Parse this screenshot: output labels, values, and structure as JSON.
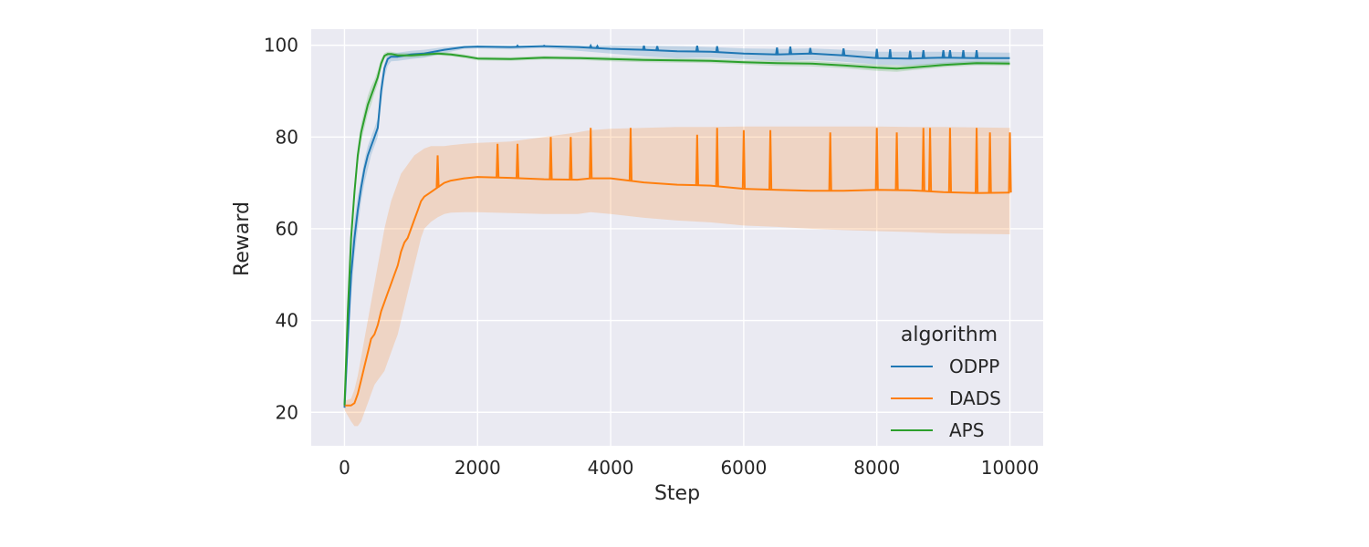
{
  "chart_data": {
    "type": "line",
    "title": "",
    "xlabel": "Step",
    "ylabel": "Reward",
    "xlim": [
      -500,
      10500
    ],
    "ylim": [
      12.7,
      103.5
    ],
    "xticks": [
      0,
      2000,
      4000,
      6000,
      8000,
      10000
    ],
    "yticks": [
      20,
      40,
      60,
      80,
      100
    ],
    "grid": true,
    "legend": {
      "title": "algorithm",
      "placement": "lower-right"
    },
    "series": [
      {
        "name": "ODPP",
        "color": "#1f77b4",
        "x": [
          0,
          50,
          100,
          150,
          200,
          250,
          300,
          350,
          400,
          450,
          500,
          550,
          600,
          650,
          700,
          800,
          1000,
          1200,
          1500,
          1800,
          2000,
          2500,
          3000,
          3500,
          4000,
          4500,
          5000,
          5500,
          6000,
          6500,
          7000,
          7500,
          8000,
          8500,
          9000,
          9500,
          10000
        ],
        "y": [
          21,
          36,
          50,
          58,
          64,
          69,
          73,
          76,
          78,
          80,
          82,
          90,
          95,
          97,
          97.5,
          97.5,
          98,
          98.2,
          99,
          99.6,
          99.7,
          99.6,
          99.8,
          99.6,
          99.2,
          99,
          98.7,
          98.6,
          98.2,
          98,
          98.2,
          97.8,
          97.2,
          97.1,
          97.3,
          97.2,
          97.2
        ],
        "upper": [
          22,
          40,
          55,
          62,
          67,
          71,
          75,
          78,
          80,
          82,
          84,
          92,
          96,
          98,
          98.3,
          98.4,
          98.8,
          99,
          99.6,
          99.9,
          100,
          99.9,
          100,
          100,
          100,
          99.9,
          99.8,
          99.6,
          99.3,
          99.2,
          99.3,
          99,
          98.6,
          98.6,
          98.6,
          98.5,
          98.4
        ],
        "lower": [
          20,
          32,
          45,
          54,
          60,
          66,
          70,
          73,
          76,
          78,
          80,
          87,
          93,
          95.5,
          96.5,
          96.6,
          97,
          97.3,
          98.3,
          99.2,
          99.3,
          99.1,
          99.4,
          98.8,
          98.2,
          97.6,
          97.2,
          97.3,
          97,
          96.6,
          96.8,
          96.4,
          95.8,
          95.6,
          95.9,
          95.8,
          95.9
        ],
        "spikes_x": [
          2600,
          3000,
          3700,
          3800,
          4500,
          4700,
          5300,
          5600,
          6500,
          6700,
          7000,
          7500,
          8000,
          8200,
          8500,
          8700,
          9000,
          9100,
          9300,
          9500
        ],
        "spikes_y": [
          99.9,
          99.9,
          99.9,
          99.8,
          99.9,
          99.8,
          99.9,
          99.8,
          99.5,
          99.7,
          99.4,
          99.3,
          99.2,
          99.1,
          98.8,
          98.9,
          98.9,
          98.9,
          98.9,
          98.9
        ]
      },
      {
        "name": "DADS",
        "color": "#ff7f0e",
        "x": [
          0,
          100,
          150,
          200,
          250,
          300,
          350,
          400,
          450,
          500,
          550,
          600,
          650,
          700,
          750,
          800,
          850,
          900,
          950,
          1000,
          1050,
          1100,
          1150,
          1200,
          1300,
          1400,
          1500,
          1600,
          1800,
          2000,
          2500,
          3000,
          3500,
          3700,
          4000,
          4500,
          5000,
          5500,
          6000,
          6500,
          7000,
          7500,
          8000,
          8500,
          9000,
          9500,
          10000
        ],
        "y": [
          21.5,
          21.5,
          22,
          24,
          27,
          30,
          33,
          36,
          37,
          39,
          42,
          44,
          46,
          48,
          50,
          52,
          55,
          57,
          58,
          60,
          62,
          64,
          66,
          67,
          68,
          69,
          70,
          70.5,
          71,
          71.3,
          71.1,
          70.8,
          70.7,
          71,
          71,
          70.1,
          69.6,
          69.4,
          68.7,
          68.5,
          68.3,
          68.3,
          68.5,
          68.4,
          68,
          67.8,
          67.9
        ],
        "upper": [
          22.5,
          23,
          25,
          28,
          32,
          36,
          40,
          44,
          48,
          52,
          56,
          60,
          63,
          66,
          68,
          70,
          72,
          73,
          74,
          75,
          76,
          76.5,
          77,
          77.5,
          78,
          78,
          78,
          78.2,
          78.5,
          78.7,
          79,
          80,
          81,
          81.5,
          81.8,
          82,
          82.2,
          82.2,
          82.3,
          82.3,
          82.3,
          82.3,
          82.3,
          82.2,
          82.2,
          82.1,
          82
        ],
        "lower": [
          20.5,
          18,
          17,
          17,
          18,
          20,
          22,
          24,
          26,
          27,
          28,
          29,
          31,
          33,
          35,
          37,
          40,
          43,
          46,
          49,
          52,
          55,
          58,
          60,
          61.5,
          62.5,
          63.2,
          63.5,
          63.6,
          63.6,
          63.4,
          63.2,
          63.2,
          63.6,
          63.2,
          62.4,
          61.8,
          61.4,
          60.7,
          60.4,
          60,
          59.7,
          59.5,
          59.3,
          59,
          58.9,
          58.8
        ],
        "spikes_x": [
          1400,
          2300,
          2600,
          3100,
          3400,
          3700,
          4300,
          5300,
          5600,
          6000,
          6400,
          7300,
          8000,
          8300,
          8700,
          8800,
          9100,
          9500,
          9700,
          10000
        ],
        "spikes_y": [
          76,
          78.5,
          78.5,
          80,
          80,
          82,
          82,
          80.5,
          82,
          81.5,
          81.5,
          81,
          82,
          81,
          82,
          82,
          82,
          82,
          81,
          81
        ]
      },
      {
        "name": "APS",
        "color": "#2ca02c",
        "x": [
          0,
          50,
          100,
          150,
          200,
          250,
          300,
          350,
          400,
          450,
          500,
          550,
          600,
          650,
          700,
          800,
          1000,
          1200,
          1400,
          1600,
          1800,
          2000,
          2500,
          3000,
          3500,
          4000,
          4500,
          5000,
          5500,
          6000,
          6500,
          7000,
          7500,
          8000,
          8300,
          8500,
          9000,
          9500,
          10000
        ],
        "y": [
          21.5,
          42,
          58,
          68,
          76,
          81,
          84,
          87,
          89,
          91,
          93,
          96,
          97.7,
          98.1,
          98.1,
          97.8,
          97.8,
          98,
          98.2,
          98,
          97.6,
          97.1,
          97,
          97.3,
          97.2,
          97,
          96.8,
          96.7,
          96.6,
          96.3,
          96.1,
          96,
          95.6,
          95.1,
          94.9,
          95.1,
          95.7,
          96.1,
          96
        ],
        "upper": [
          22.5,
          44,
          60,
          70,
          78,
          83,
          86,
          89,
          91,
          92.5,
          94.5,
          97,
          98.3,
          98.6,
          98.6,
          98.3,
          98.3,
          98.5,
          98.6,
          98.4,
          98,
          97.5,
          97.4,
          97.7,
          97.6,
          97.5,
          97.3,
          97.2,
          97.1,
          96.8,
          96.7,
          96.6,
          96.2,
          95.8,
          95.6,
          95.7,
          96.2,
          96.6,
          96.5
        ],
        "lower": [
          20.5,
          40,
          56,
          66,
          74,
          79,
          82,
          85,
          87,
          89.5,
          91.5,
          95,
          97.1,
          97.6,
          97.6,
          97.3,
          97.3,
          97.5,
          97.8,
          97.6,
          97.2,
          96.7,
          96.6,
          96.9,
          96.8,
          96.5,
          96.3,
          96.2,
          96.1,
          95.8,
          95.5,
          95.4,
          95,
          94.4,
          94.2,
          94.5,
          95.2,
          95.6,
          95.5
        ],
        "spikes_x": [],
        "spikes_y": []
      }
    ]
  }
}
